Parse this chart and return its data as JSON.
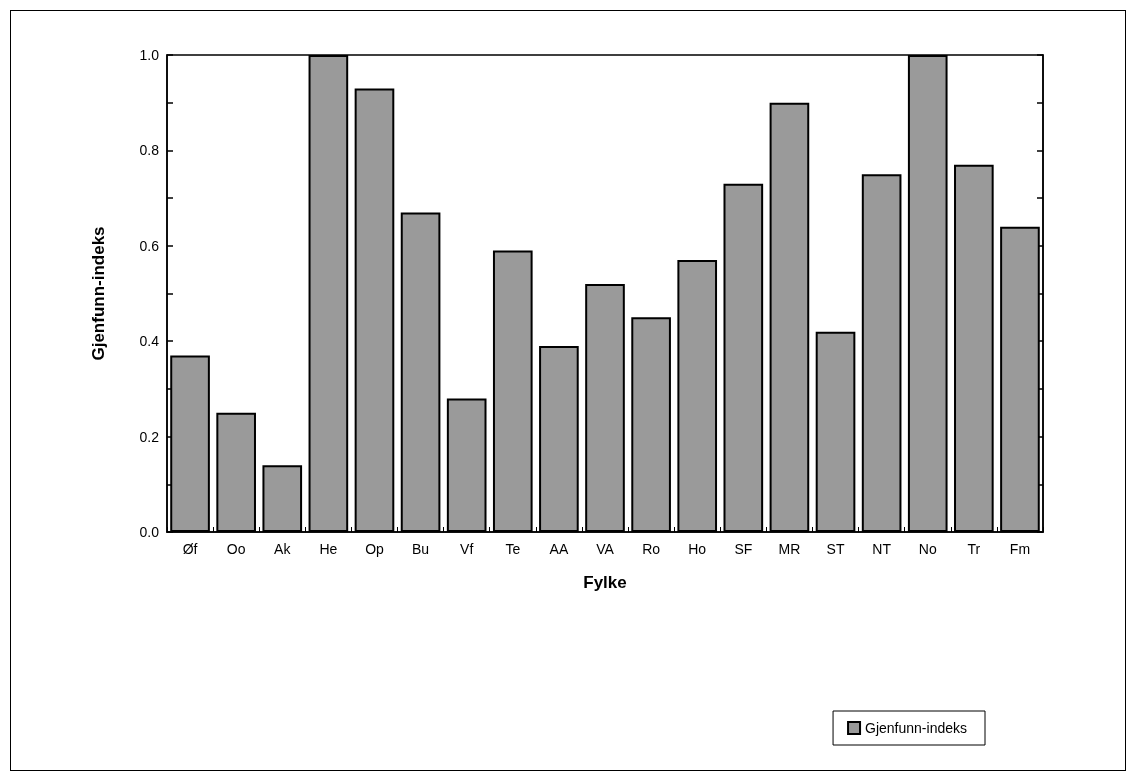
{
  "chart_data": {
    "type": "bar",
    "xlabel": "Fylke",
    "ylabel": "Gjenfunn-indeks",
    "categories": [
      "Øf",
      "Oo",
      "Ak",
      "He",
      "Op",
      "Bu",
      "Vf",
      "Te",
      "AA",
      "VA",
      "Ro",
      "Ho",
      "SF",
      "MR",
      "ST",
      "NT",
      "No",
      "Tr",
      "Fm"
    ],
    "series": [
      {
        "name": "Gjenfunn-indeks",
        "color": "#9a9a9a",
        "values": [
          0.37,
          0.25,
          0.14,
          1.0,
          0.93,
          0.67,
          0.28,
          0.59,
          0.39,
          0.52,
          0.45,
          0.57,
          0.73,
          0.9,
          0.42,
          0.75,
          1.0,
          0.77,
          0.64
        ]
      }
    ],
    "ylim": [
      0,
      1.0
    ],
    "yticks": [
      {
        "value": 0,
        "label": "0.0"
      },
      {
        "value": 0.1,
        "label": null
      },
      {
        "value": 0.2,
        "label": "0.2"
      },
      {
        "value": 0.3,
        "label": null
      },
      {
        "value": 0.4,
        "label": "0.4"
      },
      {
        "value": 0.5,
        "label": null
      },
      {
        "value": 0.6,
        "label": "0.6"
      },
      {
        "value": 0.7,
        "label": null
      },
      {
        "value": 0.8,
        "label": "0.8"
      },
      {
        "value": 0.9,
        "label": null
      },
      {
        "value": 1.0,
        "label": "1.0"
      }
    ],
    "grid": false,
    "legend": "bottom right"
  }
}
